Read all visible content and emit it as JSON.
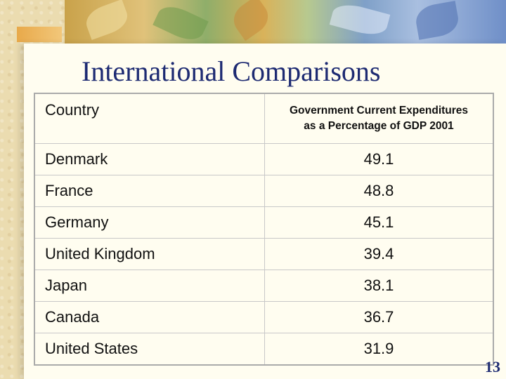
{
  "slide": {
    "title": "International Comparisons",
    "page_number": "13"
  },
  "table": {
    "headers": {
      "country": "Country",
      "metric_line1": "Government Current Expenditures",
      "metric_line2": "as a Percentage of GDP 2001"
    },
    "rows": [
      {
        "country": "Denmark",
        "value": "49.1"
      },
      {
        "country": "France",
        "value": "48.8"
      },
      {
        "country": "Germany",
        "value": "45.1"
      },
      {
        "country": "United Kingdom",
        "value": "39.4"
      },
      {
        "country": "Japan",
        "value": "38.1"
      },
      {
        "country": "Canada",
        "value": "36.7"
      },
      {
        "country": "United States",
        "value": "31.9"
      }
    ]
  }
}
